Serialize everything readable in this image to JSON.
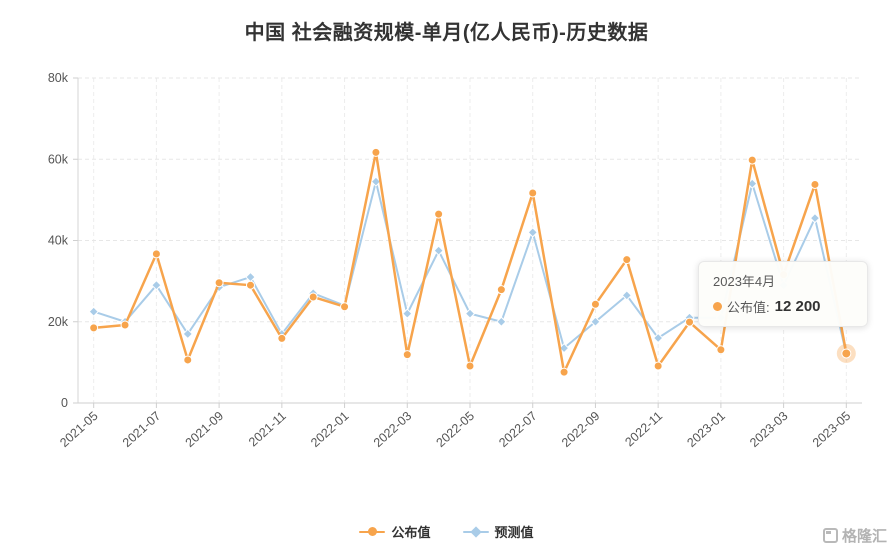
{
  "chart_data": {
    "type": "line",
    "title": "中国 社会融资规模-单月(亿人民币)-历史数据",
    "xlabel": "",
    "ylabel": "",
    "categories": [
      "2021-05",
      "2021-06",
      "2021-07",
      "2021-08",
      "2021-09",
      "2021-10",
      "2021-11",
      "2021-12",
      "2022-01",
      "2022-02",
      "2022-03",
      "2022-04",
      "2022-05",
      "2022-06",
      "2022-07",
      "2022-08",
      "2022-09",
      "2022-10",
      "2022-11",
      "2022-12",
      "2023-01",
      "2023-02",
      "2023-03",
      "2023-04",
      "2023-05"
    ],
    "x_tick_every": 2,
    "ylim": [
      0,
      80000
    ],
    "y_ticks": [
      0,
      20000,
      40000,
      60000,
      80000
    ],
    "y_tick_labels": [
      "0",
      "20k",
      "40k",
      "60k",
      "80k"
    ],
    "grid": true,
    "legend_position": "bottom",
    "series": [
      {
        "key": "announced",
        "name": "公布值",
        "color": "#F7A44C",
        "marker": "circle",
        "values": [
          18500,
          19200,
          36700,
          10600,
          29600,
          29000,
          15900,
          26100,
          23700,
          61700,
          11900,
          46500,
          9100,
          27900,
          51700,
          7600,
          24300,
          35300,
          9100,
          19900,
          13100,
          59800,
          31600,
          53800,
          12200
        ]
      },
      {
        "key": "forecast",
        "name": "预测值",
        "color": "#A9CCE8",
        "marker": "diamond",
        "values": [
          22500,
          20000,
          29000,
          17000,
          28500,
          31000,
          17000,
          27000,
          24000,
          54500,
          22000,
          37500,
          22000,
          20000,
          42000,
          13500,
          20000,
          26500,
          16000,
          21000,
          21000,
          54000,
          29000,
          45500,
          12000
        ]
      }
    ],
    "highlight": {
      "series": "公布值",
      "index": 24
    }
  },
  "tooltip": {
    "title": "2023年4月",
    "label": "公布值:",
    "value": "12 200"
  },
  "watermark": {
    "text": "格隆汇"
  }
}
